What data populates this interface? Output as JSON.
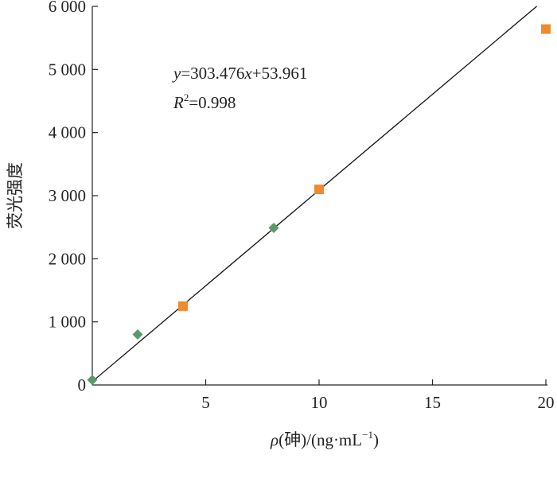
{
  "chart_data": {
    "type": "scatter",
    "xlabel": {
      "symbol": "ρ",
      "text": "(砷)/(ng·mL",
      "sup": "−1",
      "close": ")"
    },
    "ylabel": "荧光强度",
    "xlim": [
      0,
      20
    ],
    "ylim": [
      0,
      6000
    ],
    "x_ticks": [
      {
        "value": 5,
        "label": "5"
      },
      {
        "value": 10,
        "label": "10"
      },
      {
        "value": 15,
        "label": "15"
      },
      {
        "value": 20,
        "label": "20"
      }
    ],
    "y_ticks": [
      {
        "value": 0,
        "label": "0"
      },
      {
        "value": 1000,
        "label": "1 000"
      },
      {
        "value": 2000,
        "label": "2 000"
      },
      {
        "value": 3000,
        "label": "3 000"
      },
      {
        "value": 4000,
        "label": "4 000"
      },
      {
        "value": 5000,
        "label": "5 000"
      },
      {
        "value": 6000,
        "label": "6 000"
      }
    ],
    "series": [
      {
        "marker": "diamond",
        "color": "#5b9a68",
        "points": [
          [
            0,
            80
          ],
          [
            2,
            800
          ],
          [
            8,
            2490
          ]
        ]
      },
      {
        "marker": "square",
        "color": "#f08a2e",
        "points": [
          [
            4,
            1250
          ],
          [
            10,
            3100
          ],
          [
            20,
            5640
          ]
        ]
      }
    ],
    "fit": {
      "slope": 303.476,
      "intercept": 53.961,
      "x_range": [
        0,
        19.6
      ],
      "color": "#111111"
    },
    "annotations": {
      "equation": {
        "y": "y",
        "eq": "=303.476",
        "x": "x",
        "rest": "+53.961"
      },
      "r2": {
        "R": "R",
        "sup": "2",
        "rest": "=0.998"
      }
    },
    "grid": false,
    "legend": "none"
  }
}
